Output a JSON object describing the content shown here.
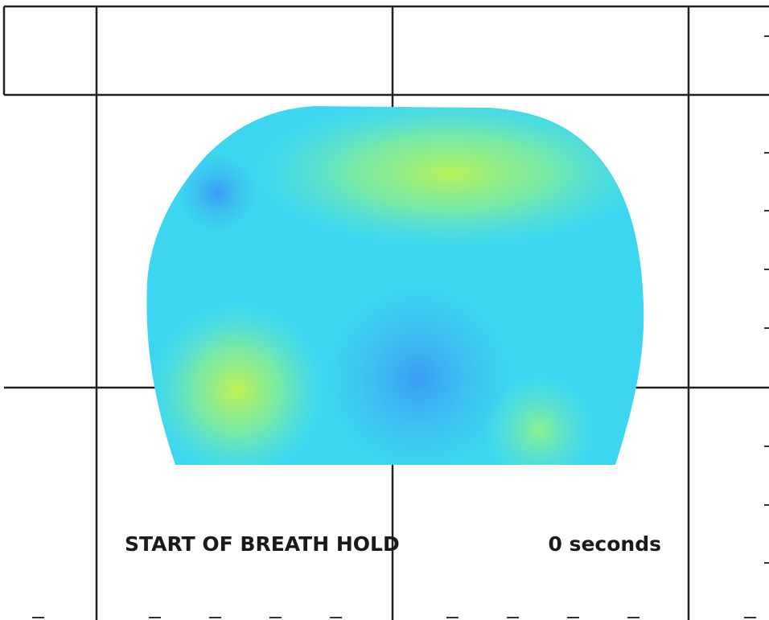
{
  "caption": {
    "label": "START OF BREATH HOLD",
    "time": "0 seconds"
  }
}
